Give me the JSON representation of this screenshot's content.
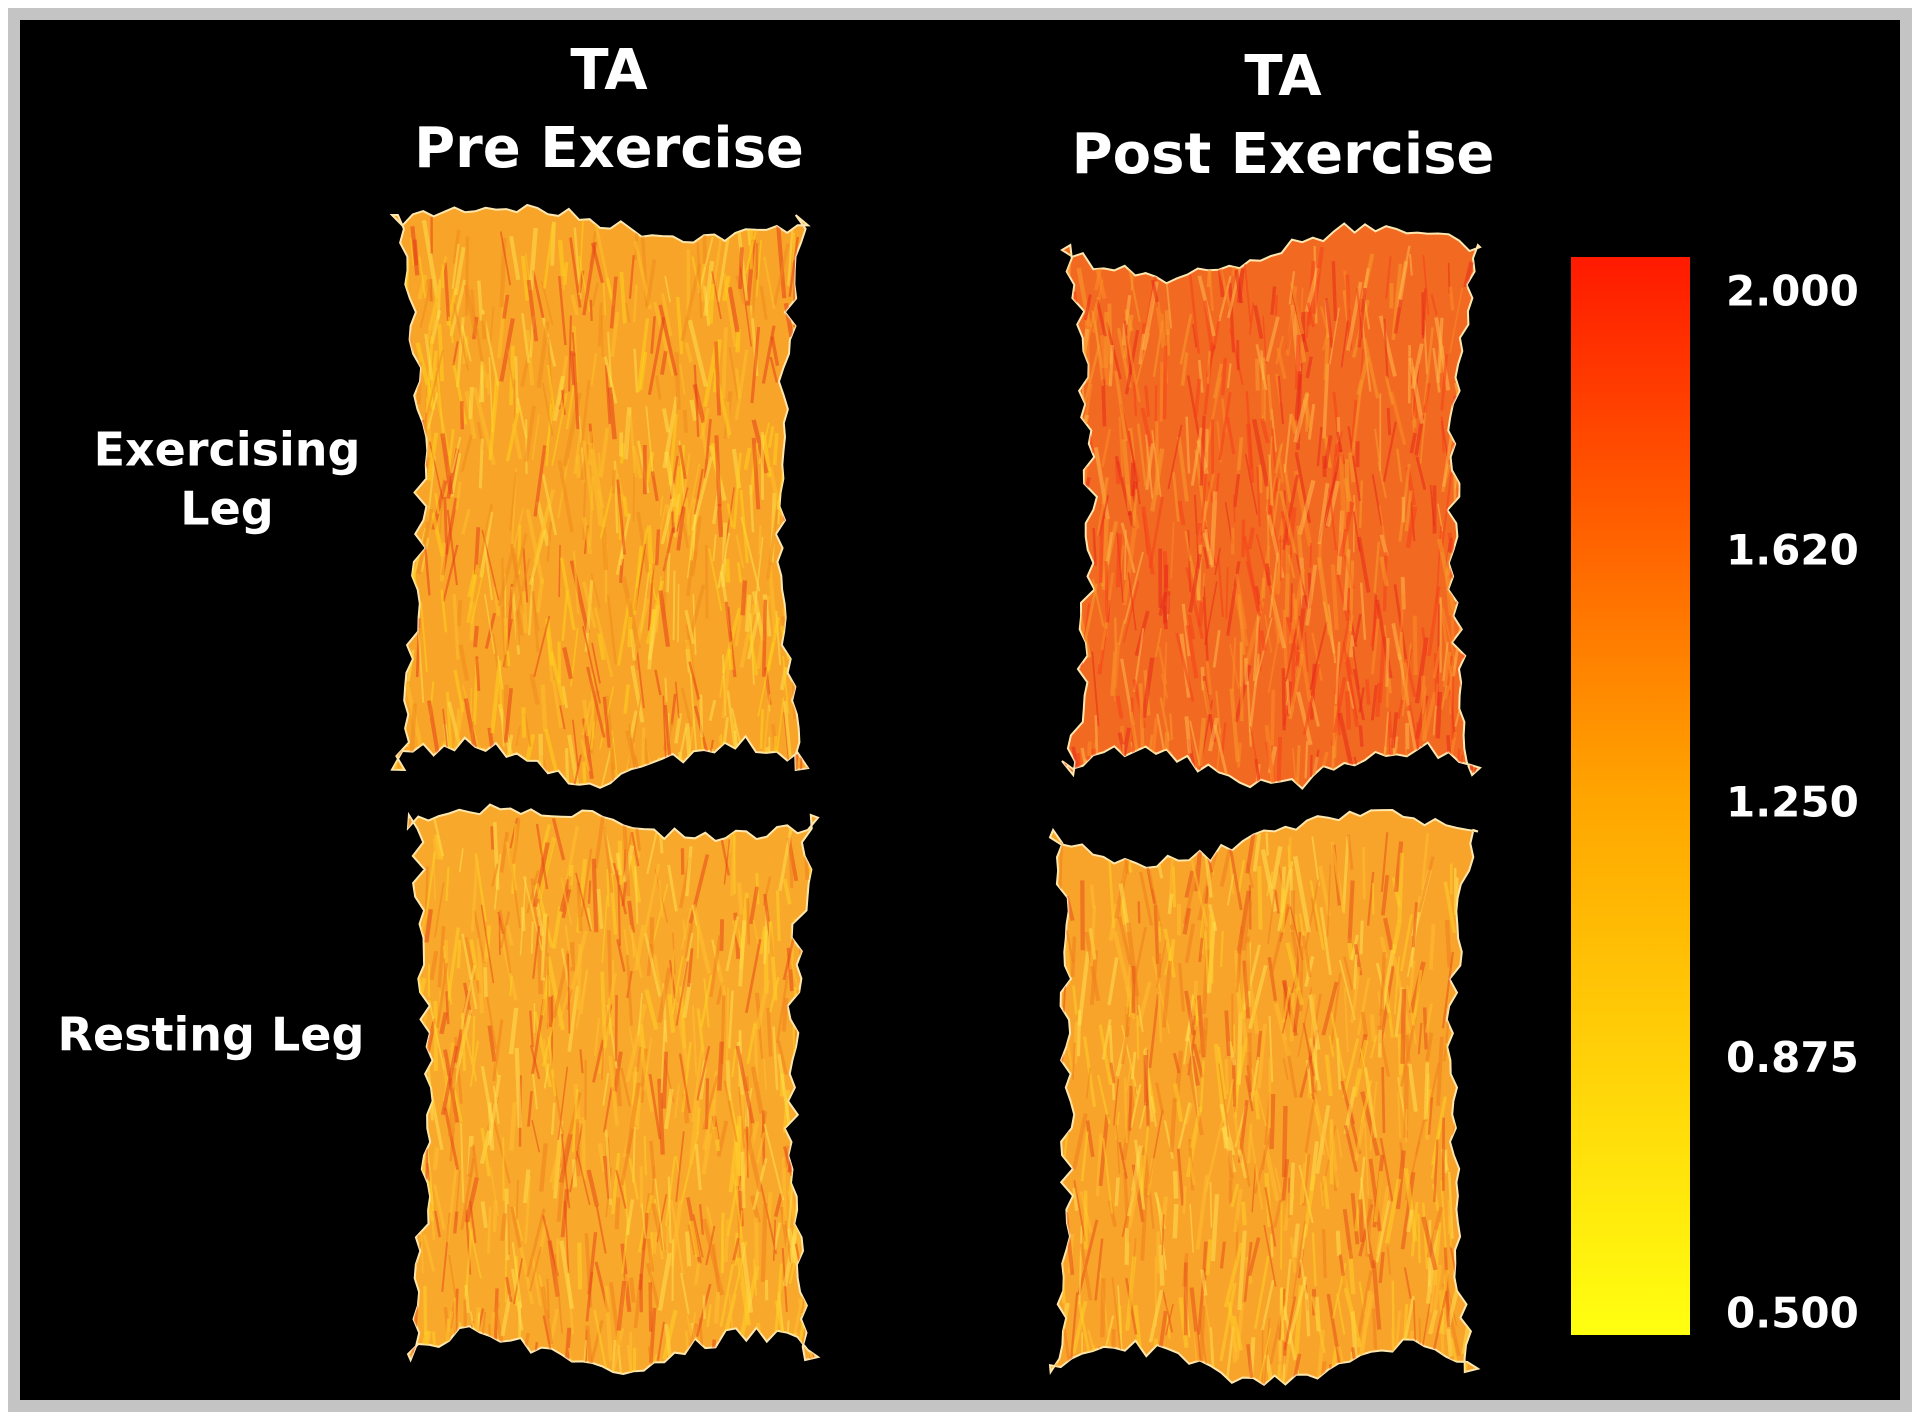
{
  "columns": [
    {
      "lines": [
        "TA",
        "Pre Exercise"
      ]
    },
    {
      "lines": [
        "TA",
        "Post Exercise"
      ]
    }
  ],
  "rows": [
    {
      "lines": [
        "Exercising",
        "Leg"
      ]
    },
    {
      "lines": [
        "Resting Leg"
      ]
    }
  ],
  "colorbar": {
    "lim": [
      0.5,
      2.0
    ],
    "colors": [
      "#ffff10",
      "#ffa500",
      "#ff1a00"
    ],
    "ticks": [
      {
        "value": 2.0,
        "label": "2.000"
      },
      {
        "value": 1.62,
        "label": "1.620"
      },
      {
        "value": 1.25,
        "label": "1.250"
      },
      {
        "value": 0.875,
        "label": "0.875"
      },
      {
        "value": 0.5,
        "label": "0.500"
      }
    ]
  }
}
